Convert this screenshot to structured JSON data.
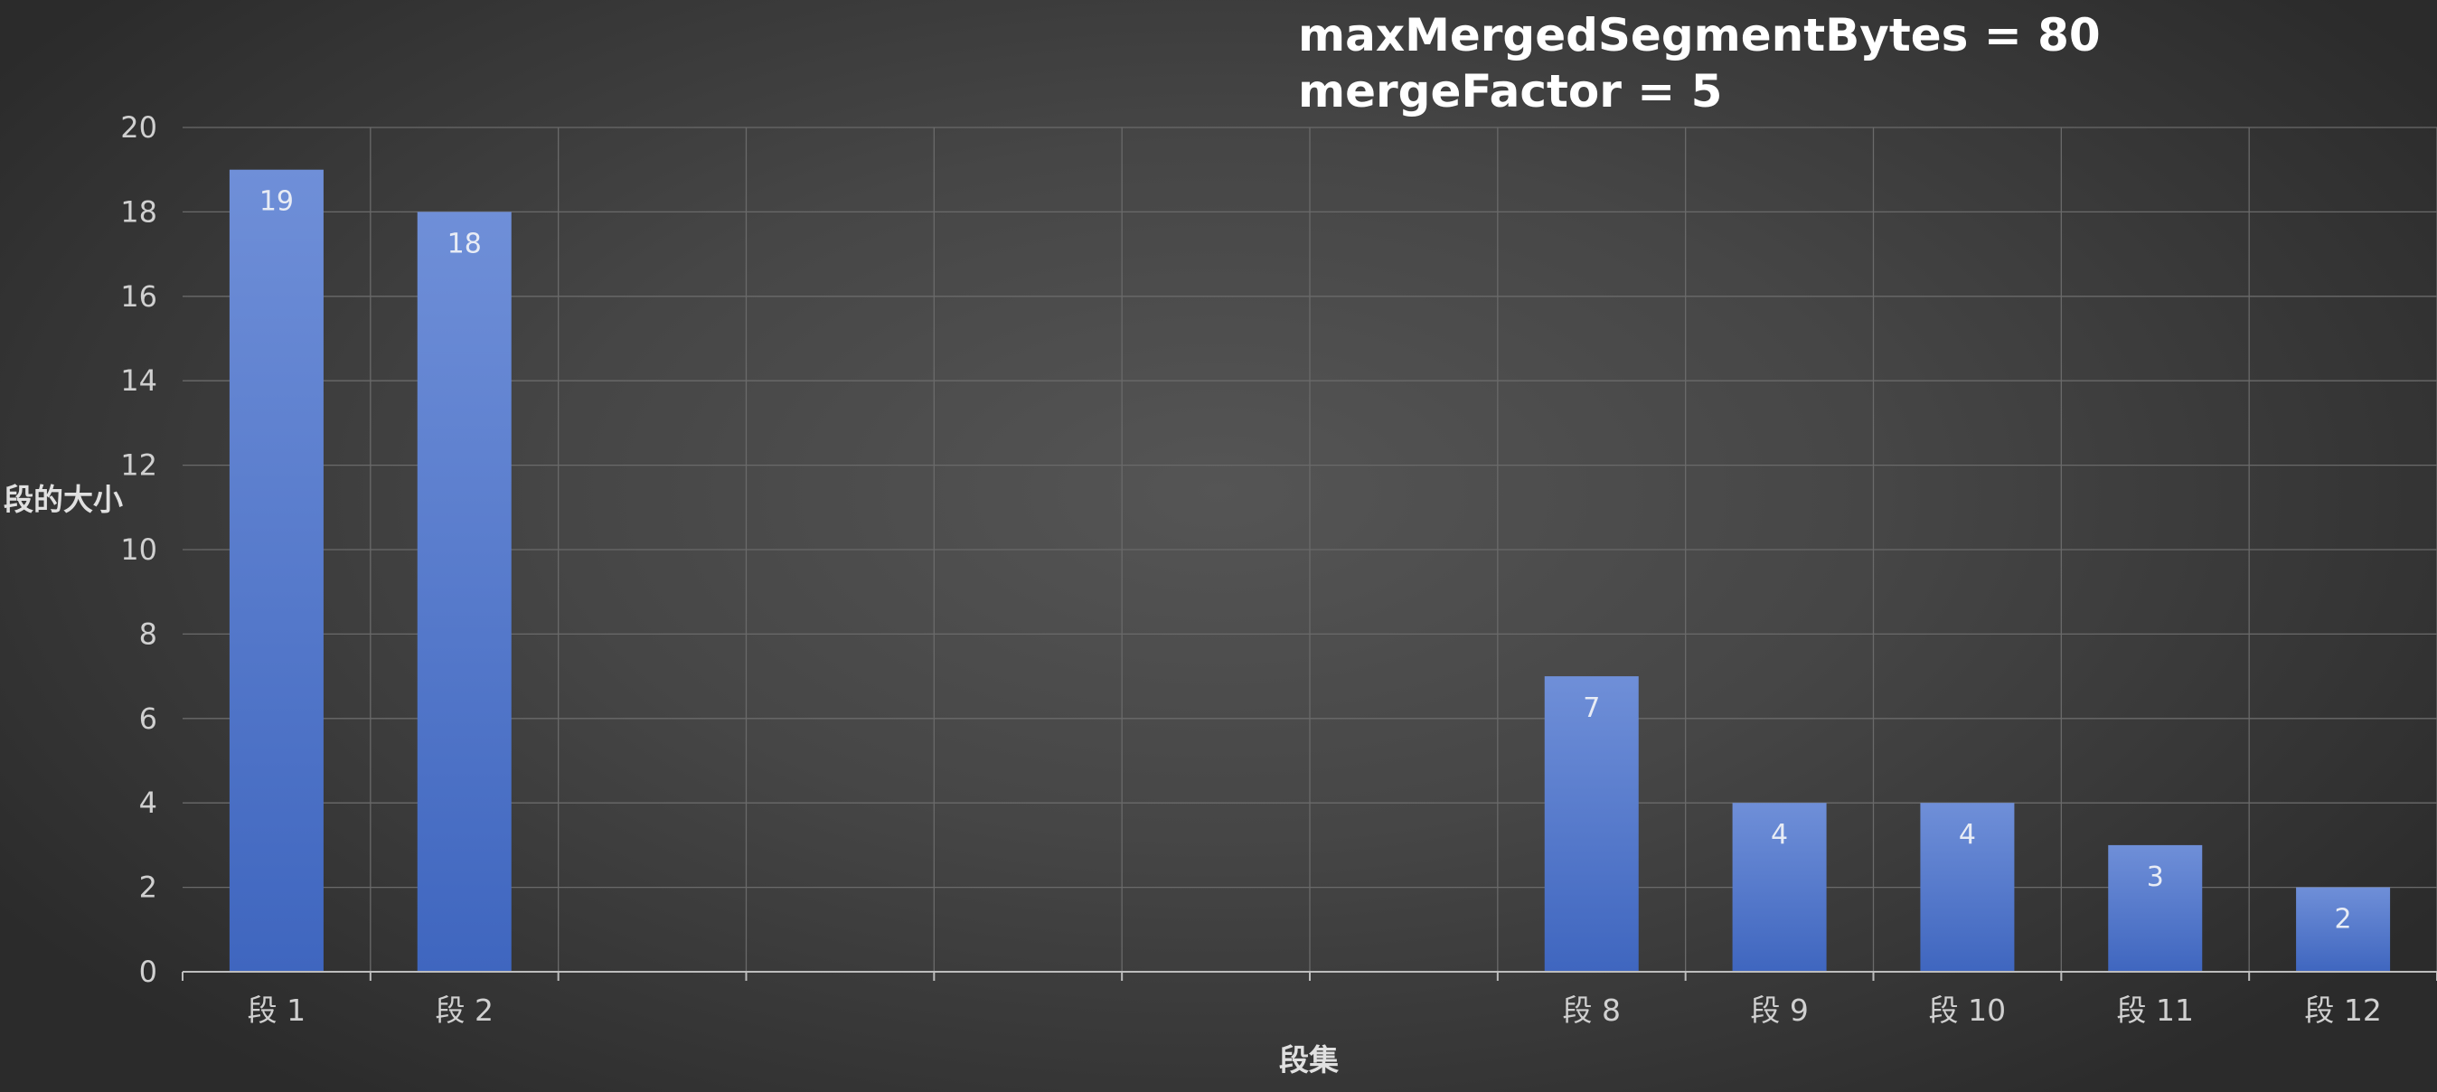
{
  "chart_data": {
    "type": "bar",
    "title_lines": [
      "maxMergedSegmentBytes = 80",
      "mergeFactor = 5"
    ],
    "xlabel": "段集",
    "ylabel": "段的大小",
    "categories": [
      "段 1",
      "段 2",
      "",
      "",
      "",
      "",
      "",
      "段 8",
      "段 9",
      "段 10",
      "段 11",
      "段 12"
    ],
    "values": [
      19,
      18,
      null,
      null,
      null,
      null,
      null,
      7,
      4,
      4,
      3,
      2
    ],
    "ylim": [
      0,
      20
    ],
    "yticks": [
      0,
      2,
      4,
      6,
      8,
      10,
      12,
      14,
      16,
      18,
      20
    ],
    "grid": true,
    "data_labels": true,
    "colors": {
      "bar_top": "#6f8fd8",
      "bar_bottom": "#3f66bf",
      "grid": "#6a6a6a",
      "text": "#d0d0d0"
    }
  }
}
